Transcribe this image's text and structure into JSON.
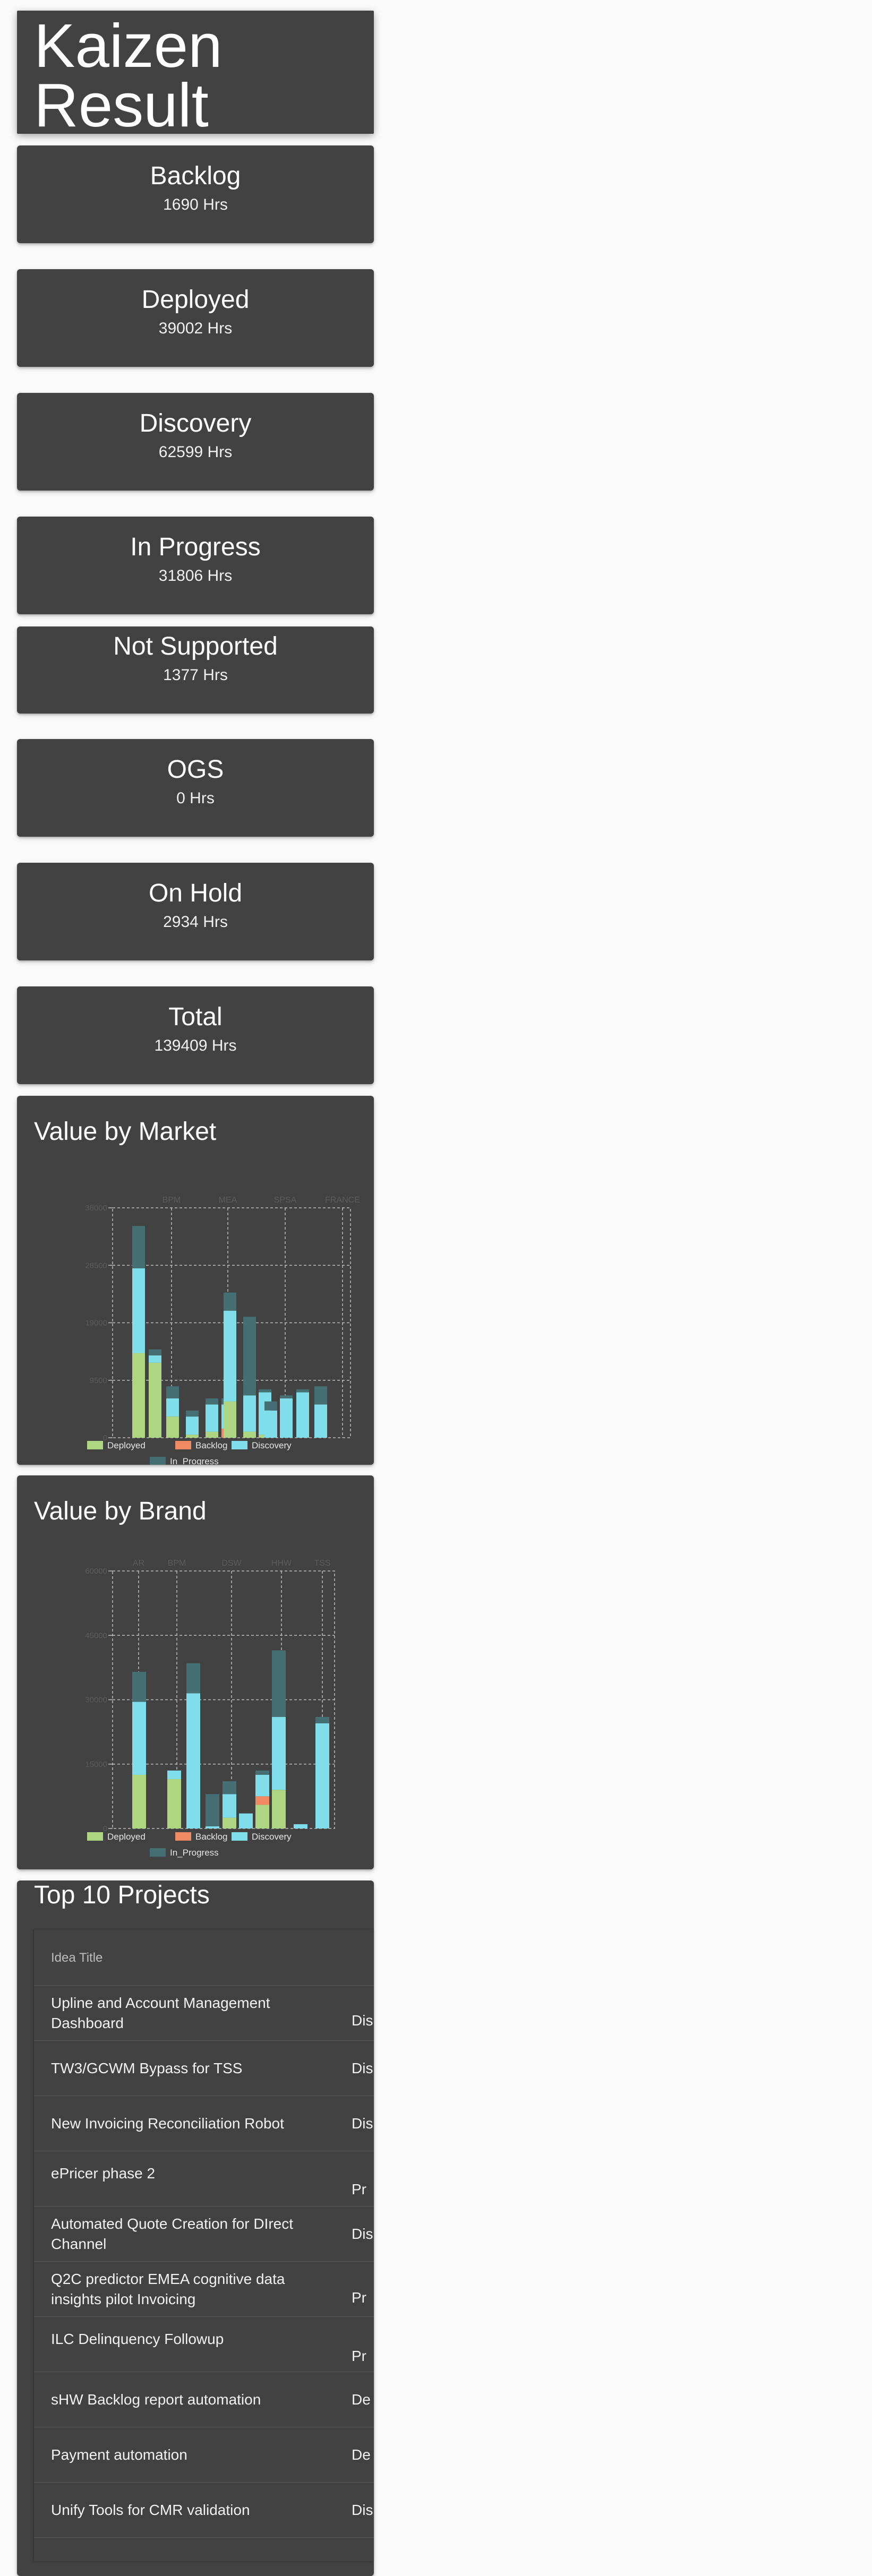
{
  "page_title": "Kaizen Result",
  "stats": [
    {
      "label": "Backlog",
      "value": "1690 Hrs"
    },
    {
      "label": "Deployed",
      "value": "39002 Hrs"
    },
    {
      "label": "Discovery",
      "value": "62599 Hrs"
    },
    {
      "label": "In Progress",
      "value": "31806 Hrs"
    },
    {
      "label": "Not Supported",
      "value": "1377 Hrs"
    },
    {
      "label": "OGS",
      "value": "0 Hrs"
    },
    {
      "label": "On Hold",
      "value": "2934 Hrs"
    },
    {
      "label": "Total",
      "value": "139409 Hrs"
    }
  ],
  "chart_data": [
    {
      "type": "bar",
      "stacked": true,
      "title": "Value by Market",
      "top_labels": [
        "BPM",
        "MEA",
        "SPSA",
        "FRANCE"
      ],
      "y_ticks": [
        0,
        9500,
        19000,
        28500,
        38000
      ],
      "ylim": [
        0,
        38000
      ],
      "grid": true,
      "legend_position": "bottom",
      "colors": {
        "Deployed": "#aed581",
        "Backlog": "#ef8a62",
        "Discovery": "#80deea",
        "In_Progress": "#456f72"
      },
      "series": [
        {
          "name": "Deployed",
          "values": [
            14000,
            12400,
            3500,
            500,
            1000,
            0,
            6000,
            1000,
            500,
            0,
            0,
            0,
            0,
            0
          ]
        },
        {
          "name": "Backlog",
          "values": [
            0,
            0,
            0,
            0,
            0,
            1500,
            0,
            0,
            0,
            0,
            0,
            0,
            0,
            0
          ]
        },
        {
          "name": "Discovery",
          "values": [
            14000,
            1200,
            3000,
            3000,
            4500,
            4000,
            15000,
            6000,
            7000,
            4500,
            6500,
            7500,
            5500,
            0
          ]
        },
        {
          "name": "In_Progress",
          "values": [
            7000,
            1000,
            2000,
            1000,
            1000,
            1000,
            3000,
            13000,
            500,
            1500,
            500,
            500,
            3000,
            0
          ]
        }
      ]
    },
    {
      "type": "bar",
      "stacked": true,
      "title": "Value by Brand",
      "top_labels": [
        "AR",
        "BPM",
        "DSW",
        "HHW",
        "TSS"
      ],
      "y_ticks": [
        0,
        15000,
        30000,
        45000,
        60000
      ],
      "ylim": [
        0,
        60000
      ],
      "grid": true,
      "legend_position": "bottom",
      "colors": {
        "Deployed": "#aed581",
        "Backlog": "#ef8a62",
        "Discovery": "#80deea",
        "In_Progress": "#456f72"
      },
      "series": [
        {
          "name": "Deployed",
          "values": [
            12500,
            0,
            11500,
            0,
            0,
            2500,
            0,
            5500,
            9000,
            0,
            0
          ]
        },
        {
          "name": "Backlog",
          "values": [
            0,
            0,
            0,
            0,
            0,
            0,
            0,
            2000,
            0,
            0,
            0
          ]
        },
        {
          "name": "Discovery",
          "values": [
            17000,
            0,
            2000,
            31500,
            500,
            5500,
            3500,
            5000,
            17000,
            1000,
            24500
          ]
        },
        {
          "name": "In_Progress",
          "values": [
            7000,
            0,
            0,
            7000,
            7500,
            3000,
            0,
            1000,
            15500,
            0,
            1500
          ]
        }
      ]
    }
  ],
  "legend": {
    "deployed": "Deployed",
    "backlog": "Backlog",
    "discovery": "Discovery",
    "in_progress": "In_Progress"
  },
  "top_projects": {
    "title": "Top 10 Projects",
    "column_header": "Idea Title",
    "rows": [
      {
        "title": "Upline and Account Management Dashboard",
        "status": "Dis"
      },
      {
        "title": "TW3/GCWM Bypass for TSS",
        "status": "Dis"
      },
      {
        "title": "New Invoicing Reconciliation Robot",
        "status": "Dis"
      },
      {
        "title": "ePricer phase 2",
        "status": "Pr"
      },
      {
        "title": "Automated Quote Creation for DIrect Channel",
        "status": "Dis"
      },
      {
        "title": "Q2C predictor EMEA cognitive data insights pilot Invoicing",
        "status": "Pr"
      },
      {
        "title": "ILC Delinquency Followup",
        "status": "Pr"
      },
      {
        "title": "sHW Backlog report automation",
        "status": "De"
      },
      {
        "title": "Payment automation",
        "status": "De"
      },
      {
        "title": "Unify Tools for CMR validation",
        "status": "Dis"
      }
    ]
  }
}
